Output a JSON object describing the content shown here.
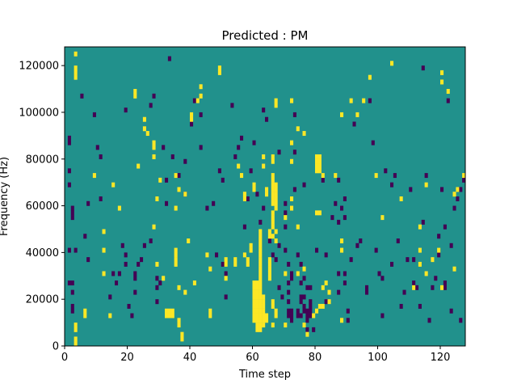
{
  "chart_data": {
    "type": "heatmap",
    "title": "Predicted : PM",
    "xlabel": "Time step",
    "ylabel": "Frequency (Hz)",
    "xlim": [
      0,
      128
    ],
    "ylim": [
      0,
      128000
    ],
    "x_ticks": [
      0,
      20,
      40,
      60,
      80,
      100,
      120
    ],
    "y_ticks": [
      0,
      20000,
      40000,
      60000,
      80000,
      100000,
      120000
    ],
    "grid": false,
    "legend": "none",
    "cell_width": 1,
    "cell_height": 2000,
    "colors": {
      "background": "#21918c",
      "high": "#fde725",
      "low": "#440154"
    },
    "cells_high": [
      [
        3,
        124000
      ],
      [
        3,
        118000
      ],
      [
        3,
        116000
      ],
      [
        3,
        114000
      ],
      [
        3,
        8000
      ],
      [
        3,
        6000
      ],
      [
        3,
        2000
      ],
      [
        3,
        0
      ],
      [
        6,
        14000
      ],
      [
        6,
        12000
      ],
      [
        9,
        72000
      ],
      [
        12,
        48000
      ],
      [
        12,
        40000
      ],
      [
        12,
        30000
      ],
      [
        14,
        12000
      ],
      [
        15,
        68000
      ],
      [
        17,
        58000
      ],
      [
        22,
        108000
      ],
      [
        22,
        106000
      ],
      [
        23,
        76000
      ],
      [
        25,
        96000
      ],
      [
        25,
        92000
      ],
      [
        26,
        90000
      ],
      [
        28,
        86000
      ],
      [
        28,
        84000
      ],
      [
        28,
        80000
      ],
      [
        30,
        70000
      ],
      [
        29,
        62000
      ],
      [
        28,
        50000
      ],
      [
        29,
        34000
      ],
      [
        31,
        28000
      ],
      [
        32,
        14000
      ],
      [
        32,
        12000
      ],
      [
        33,
        14000
      ],
      [
        33,
        12000
      ],
      [
        34,
        14000
      ],
      [
        34,
        12000
      ],
      [
        35,
        72000
      ],
      [
        35,
        58000
      ],
      [
        36,
        66000
      ],
      [
        35,
        40000
      ],
      [
        35,
        38000
      ],
      [
        35,
        36000
      ],
      [
        35,
        34000
      ],
      [
        36,
        24000
      ],
      [
        36,
        10000
      ],
      [
        36,
        8000
      ],
      [
        37,
        4000
      ],
      [
        37,
        2000
      ],
      [
        38,
        64000
      ],
      [
        38,
        22000
      ],
      [
        39,
        44000
      ],
      [
        40,
        98000
      ],
      [
        40,
        96000
      ],
      [
        41,
        26000
      ],
      [
        42,
        104000
      ],
      [
        43,
        106000
      ],
      [
        43,
        110000
      ],
      [
        45,
        38000
      ],
      [
        46,
        32000
      ],
      [
        46,
        14000
      ],
      [
        46,
        12000
      ],
      [
        49,
        118000
      ],
      [
        49,
        116000
      ],
      [
        51,
        36000
      ],
      [
        51,
        34000
      ],
      [
        51,
        28000
      ],
      [
        54,
        36000
      ],
      [
        54,
        34000
      ],
      [
        55,
        76000
      ],
      [
        56,
        72000
      ],
      [
        57,
        64000
      ],
      [
        57,
        62000
      ],
      [
        57,
        38000
      ],
      [
        58,
        36000
      ],
      [
        58,
        34000
      ],
      [
        59,
        42000
      ],
      [
        59,
        40000
      ],
      [
        60,
        68000
      ],
      [
        60,
        66000
      ],
      [
        60,
        26000
      ],
      [
        60,
        24000
      ],
      [
        60,
        22000
      ],
      [
        60,
        20000
      ],
      [
        60,
        18000
      ],
      [
        60,
        16000
      ],
      [
        60,
        14000
      ],
      [
        60,
        12000
      ],
      [
        60,
        10000
      ],
      [
        61,
        26000
      ],
      [
        61,
        24000
      ],
      [
        61,
        22000
      ],
      [
        61,
        20000
      ],
      [
        61,
        18000
      ],
      [
        61,
        16000
      ],
      [
        61,
        14000
      ],
      [
        61,
        12000
      ],
      [
        61,
        10000
      ],
      [
        61,
        8000
      ],
      [
        61,
        6000
      ],
      [
        62,
        48000
      ],
      [
        62,
        46000
      ],
      [
        62,
        44000
      ],
      [
        62,
        42000
      ],
      [
        62,
        40000
      ],
      [
        62,
        38000
      ],
      [
        62,
        36000
      ],
      [
        62,
        34000
      ],
      [
        62,
        32000
      ],
      [
        62,
        30000
      ],
      [
        62,
        28000
      ],
      [
        62,
        26000
      ],
      [
        62,
        24000
      ],
      [
        62,
        22000
      ],
      [
        62,
        20000
      ],
      [
        62,
        18000
      ],
      [
        62,
        16000
      ],
      [
        62,
        14000
      ],
      [
        62,
        12000
      ],
      [
        62,
        10000
      ],
      [
        62,
        8000
      ],
      [
        62,
        6000
      ],
      [
        63,
        80000
      ],
      [
        63,
        76000
      ],
      [
        63,
        20000
      ],
      [
        63,
        18000
      ],
      [
        63,
        16000
      ],
      [
        63,
        14000
      ],
      [
        63,
        12000
      ],
      [
        63,
        10000
      ],
      [
        63,
        8000
      ],
      [
        64,
        66000
      ],
      [
        64,
        64000
      ],
      [
        64,
        12000
      ],
      [
        64,
        10000
      ],
      [
        65,
        48000
      ],
      [
        65,
        46000
      ],
      [
        65,
        36000
      ],
      [
        65,
        34000
      ],
      [
        65,
        32000
      ],
      [
        65,
        30000
      ],
      [
        65,
        28000
      ],
      [
        66,
        80000
      ],
      [
        66,
        78000
      ],
      [
        66,
        72000
      ],
      [
        66,
        70000
      ],
      [
        66,
        68000
      ],
      [
        66,
        66000
      ],
      [
        66,
        64000
      ],
      [
        66,
        62000
      ],
      [
        66,
        60000
      ],
      [
        66,
        56000
      ],
      [
        66,
        54000
      ],
      [
        66,
        52000
      ],
      [
        66,
        50000
      ],
      [
        66,
        46000
      ],
      [
        66,
        18000
      ],
      [
        66,
        16000
      ],
      [
        66,
        8000
      ],
      [
        67,
        104000
      ],
      [
        67,
        102000
      ],
      [
        67,
        68000
      ],
      [
        67,
        66000
      ],
      [
        67,
        64000
      ],
      [
        67,
        62000
      ],
      [
        67,
        60000
      ],
      [
        67,
        58000
      ],
      [
        67,
        48000
      ],
      [
        67,
        44000
      ],
      [
        67,
        14000
      ],
      [
        67,
        12000
      ],
      [
        70,
        54000
      ],
      [
        70,
        30000
      ],
      [
        70,
        8000
      ],
      [
        72,
        104000
      ],
      [
        72,
        86000
      ],
      [
        72,
        78000
      ],
      [
        72,
        62000
      ],
      [
        72,
        58000
      ],
      [
        74,
        92000
      ],
      [
        74,
        50000
      ],
      [
        76,
        90000
      ],
      [
        74,
        30000
      ],
      [
        76,
        32000
      ],
      [
        76,
        8000
      ],
      [
        77,
        4000
      ],
      [
        79,
        12000
      ],
      [
        80,
        80000
      ],
      [
        80,
        78000
      ],
      [
        80,
        76000
      ],
      [
        80,
        74000
      ],
      [
        80,
        56000
      ],
      [
        80,
        14000
      ],
      [
        81,
        80000
      ],
      [
        81,
        78000
      ],
      [
        81,
        76000
      ],
      [
        81,
        74000
      ],
      [
        81,
        56000
      ],
      [
        81,
        16000
      ],
      [
        82,
        72000
      ],
      [
        82,
        24000
      ],
      [
        82,
        16000
      ],
      [
        83,
        26000
      ],
      [
        84,
        22000
      ],
      [
        84,
        18000
      ],
      [
        86,
        72000
      ],
      [
        88,
        98000
      ],
      [
        88,
        44000
      ],
      [
        88,
        40000
      ],
      [
        88,
        10000
      ],
      [
        91,
        104000
      ],
      [
        93,
        98000
      ],
      [
        95,
        104000
      ],
      [
        97,
        114000
      ],
      [
        99,
        72000
      ],
      [
        101,
        54000
      ],
      [
        104,
        120000
      ],
      [
        107,
        62000
      ],
      [
        111,
        24000
      ],
      [
        113,
        34000
      ],
      [
        113,
        40000
      ],
      [
        113,
        50000
      ],
      [
        115,
        30000
      ],
      [
        115,
        68000
      ],
      [
        117,
        36000
      ],
      [
        119,
        40000
      ],
      [
        120,
        24000
      ],
      [
        120,
        116000
      ],
      [
        120,
        112000
      ],
      [
        122,
        108000
      ],
      [
        124,
        32000
      ],
      [
        124,
        64000
      ],
      [
        125,
        66000
      ],
      [
        127,
        72000
      ]
    ],
    "cells_low": [
      [
        1,
        88000
      ],
      [
        1,
        86000
      ],
      [
        1,
        74000
      ],
      [
        1,
        68000
      ],
      [
        2,
        58000
      ],
      [
        2,
        56000
      ],
      [
        2,
        54000
      ],
      [
        1,
        40000
      ],
      [
        1,
        26000
      ],
      [
        2,
        26000
      ],
      [
        2,
        22000
      ],
      [
        2,
        16000
      ],
      [
        2,
        14000
      ],
      [
        3,
        40000
      ],
      [
        5,
        106000
      ],
      [
        6,
        46000
      ],
      [
        7,
        36000
      ],
      [
        7,
        60000
      ],
      [
        9,
        98000
      ],
      [
        10,
        84000
      ],
      [
        11,
        80000
      ],
      [
        11,
        62000
      ],
      [
        14,
        20000
      ],
      [
        15,
        30000
      ],
      [
        16,
        26000
      ],
      [
        17,
        30000
      ],
      [
        18,
        42000
      ],
      [
        19,
        100000
      ],
      [
        19,
        34000
      ],
      [
        19,
        38000
      ],
      [
        20,
        16000
      ],
      [
        21,
        12000
      ],
      [
        22,
        22000
      ],
      [
        22,
        28000
      ],
      [
        22,
        30000
      ],
      [
        23,
        34000
      ],
      [
        24,
        36000
      ],
      [
        25,
        42000
      ],
      [
        27,
        44000
      ],
      [
        27,
        102000
      ],
      [
        28,
        106000
      ],
      [
        29,
        28000
      ],
      [
        29,
        24000
      ],
      [
        29,
        18000
      ],
      [
        30,
        26000
      ],
      [
        31,
        84000
      ],
      [
        32,
        60000
      ],
      [
        32,
        70000
      ],
      [
        33,
        122000
      ],
      [
        34,
        80000
      ],
      [
        36,
        72000
      ],
      [
        38,
        64000
      ],
      [
        38,
        78000
      ],
      [
        40,
        94000
      ],
      [
        41,
        104000
      ],
      [
        43,
        98000
      ],
      [
        43,
        84000
      ],
      [
        45,
        58000
      ],
      [
        47,
        60000
      ],
      [
        48,
        38000
      ],
      [
        49,
        74000
      ],
      [
        50,
        70000
      ],
      [
        50,
        34000
      ],
      [
        51,
        30000
      ],
      [
        51,
        20000
      ],
      [
        53,
        102000
      ],
      [
        54,
        80000
      ],
      [
        55,
        84000
      ],
      [
        56,
        88000
      ],
      [
        57,
        50000
      ],
      [
        58,
        62000
      ],
      [
        59,
        74000
      ],
      [
        60,
        86000
      ],
      [
        61,
        64000
      ],
      [
        62,
        52000
      ],
      [
        63,
        58000
      ],
      [
        63,
        100000
      ],
      [
        64,
        96000
      ],
      [
        65,
        44000
      ],
      [
        66,
        38000
      ],
      [
        67,
        36000
      ],
      [
        68,
        82000
      ],
      [
        68,
        42000
      ],
      [
        68,
        24000
      ],
      [
        69,
        20000
      ],
      [
        70,
        60000
      ],
      [
        70,
        56000
      ],
      [
        70,
        50000
      ],
      [
        70,
        40000
      ],
      [
        71,
        34000
      ],
      [
        71,
        26000
      ],
      [
        71,
        22000
      ],
      [
        71,
        18000
      ],
      [
        71,
        14000
      ],
      [
        71,
        12000
      ],
      [
        72,
        28000
      ],
      [
        72,
        30000
      ],
      [
        72,
        14000
      ],
      [
        72,
        12000
      ],
      [
        72,
        10000
      ],
      [
        73,
        98000
      ],
      [
        73,
        82000
      ],
      [
        73,
        66000
      ],
      [
        74,
        38000
      ],
      [
        74,
        14000
      ],
      [
        74,
        12000
      ],
      [
        75,
        34000
      ],
      [
        75,
        26000
      ],
      [
        75,
        20000
      ],
      [
        75,
        18000
      ],
      [
        75,
        12000
      ],
      [
        76,
        68000
      ],
      [
        76,
        28000
      ],
      [
        76,
        20000
      ],
      [
        76,
        16000
      ],
      [
        76,
        14000
      ],
      [
        77,
        24000
      ],
      [
        77,
        14000
      ],
      [
        77,
        12000
      ],
      [
        77,
        10000
      ],
      [
        77,
        6000
      ],
      [
        78,
        24000
      ],
      [
        78,
        18000
      ],
      [
        78,
        16000
      ],
      [
        78,
        14000
      ],
      [
        78,
        12000
      ],
      [
        79,
        6000
      ],
      [
        80,
        40000
      ],
      [
        82,
        70000
      ],
      [
        83,
        38000
      ],
      [
        83,
        18000
      ],
      [
        85,
        54000
      ],
      [
        86,
        60000
      ],
      [
        87,
        70000
      ],
      [
        87,
        52000
      ],
      [
        87,
        30000
      ],
      [
        87,
        22000
      ],
      [
        88,
        58000
      ],
      [
        89,
        62000
      ],
      [
        89,
        54000
      ],
      [
        89,
        30000
      ],
      [
        89,
        26000
      ],
      [
        90,
        14000
      ],
      [
        90,
        10000
      ],
      [
        91,
        36000
      ],
      [
        92,
        94000
      ],
      [
        93,
        42000
      ],
      [
        94,
        44000
      ],
      [
        96,
        22000
      ],
      [
        96,
        24000
      ],
      [
        97,
        104000
      ],
      [
        98,
        86000
      ],
      [
        99,
        40000
      ],
      [
        100,
        30000
      ],
      [
        101,
        28000
      ],
      [
        101,
        12000
      ],
      [
        102,
        74000
      ],
      [
        104,
        34000
      ],
      [
        104,
        68000
      ],
      [
        105,
        72000
      ],
      [
        106,
        44000
      ],
      [
        107,
        16000
      ],
      [
        108,
        22000
      ],
      [
        109,
        36000
      ],
      [
        110,
        66000
      ],
      [
        111,
        26000
      ],
      [
        111,
        36000
      ],
      [
        112,
        24000
      ],
      [
        113,
        16000
      ],
      [
        114,
        118000
      ],
      [
        114,
        52000
      ],
      [
        115,
        72000
      ],
      [
        116,
        10000
      ],
      [
        117,
        24000
      ],
      [
        118,
        28000
      ],
      [
        119,
        38000
      ],
      [
        119,
        46000
      ],
      [
        120,
        66000
      ],
      [
        121,
        50000
      ],
      [
        121,
        26000
      ],
      [
        121,
        24000
      ],
      [
        122,
        104000
      ],
      [
        123,
        14000
      ],
      [
        124,
        58000
      ],
      [
        125,
        62000
      ],
      [
        126,
        10000
      ],
      [
        126,
        66000
      ],
      [
        127,
        70000
      ],
      [
        123,
        42000
      ]
    ]
  }
}
